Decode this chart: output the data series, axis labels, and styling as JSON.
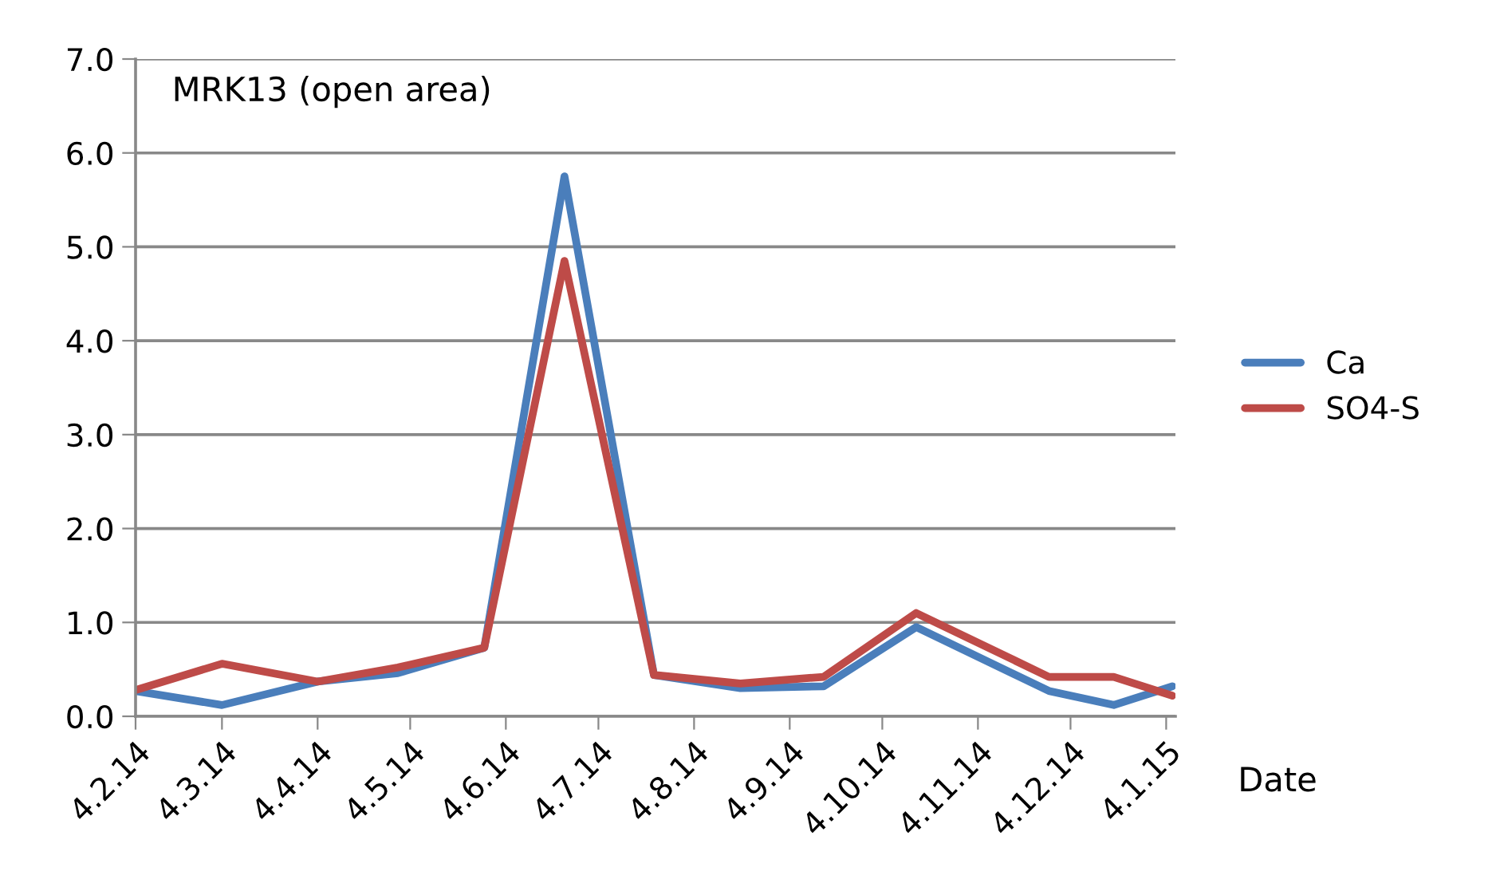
{
  "chart_data": {
    "type": "line",
    "title": "MRK13 (open area)",
    "xlabel": "Date",
    "x": [
      "2014-02-04",
      "2014-03-04",
      "2014-04-04",
      "2014-04-30",
      "2014-05-28",
      "2014-06-23",
      "2014-07-22",
      "2014-08-19",
      "2014-09-15",
      "2014-10-15",
      "2014-11-27",
      "2014-12-18",
      "2015-01-06"
    ],
    "series": [
      {
        "name": "Ca",
        "color": "#4a7ebb",
        "values": [
          0.27,
          0.12,
          0.37,
          0.46,
          0.73,
          5.75,
          0.44,
          0.3,
          0.32,
          0.95,
          0.27,
          0.12,
          0.32
        ]
      },
      {
        "name": "SO4-S",
        "color": "#be4b48",
        "values": [
          0.28,
          0.56,
          0.37,
          0.52,
          0.73,
          4.85,
          0.44,
          0.35,
          0.42,
          1.1,
          0.42,
          0.42,
          0.22
        ]
      }
    ],
    "xlim": [
      "2014-02-04",
      "2015-01-07"
    ],
    "xticks": [
      {
        "value": "2014-02-04",
        "label": "4.2.14"
      },
      {
        "value": "2014-03-04",
        "label": "4.3.14"
      },
      {
        "value": "2014-04-04",
        "label": "4.4.14"
      },
      {
        "value": "2014-05-04",
        "label": "4.5.14"
      },
      {
        "value": "2014-06-04",
        "label": "4.6.14"
      },
      {
        "value": "2014-07-04",
        "label": "4.7.14"
      },
      {
        "value": "2014-08-04",
        "label": "4.8.14"
      },
      {
        "value": "2014-09-04",
        "label": "4.9.14"
      },
      {
        "value": "2014-10-04",
        "label": "4.10.14"
      },
      {
        "value": "2014-11-04",
        "label": "4.11.14"
      },
      {
        "value": "2014-12-04",
        "label": "4.12.14"
      },
      {
        "value": "2015-01-04",
        "label": "4.1.15"
      }
    ],
    "ylim": [
      0,
      7
    ],
    "yticks": [
      {
        "value": 0,
        "label": "0.0"
      },
      {
        "value": 1,
        "label": "1.0"
      },
      {
        "value": 2,
        "label": "2.0"
      },
      {
        "value": 3,
        "label": "3.0"
      },
      {
        "value": 4,
        "label": "4.0"
      },
      {
        "value": 5,
        "label": "5.0"
      },
      {
        "value": 6,
        "label": "6.0"
      },
      {
        "value": 7,
        "label": "7.0"
      }
    ],
    "grid": "y",
    "legend": "right",
    "marker": "none",
    "line_style": "solid"
  }
}
